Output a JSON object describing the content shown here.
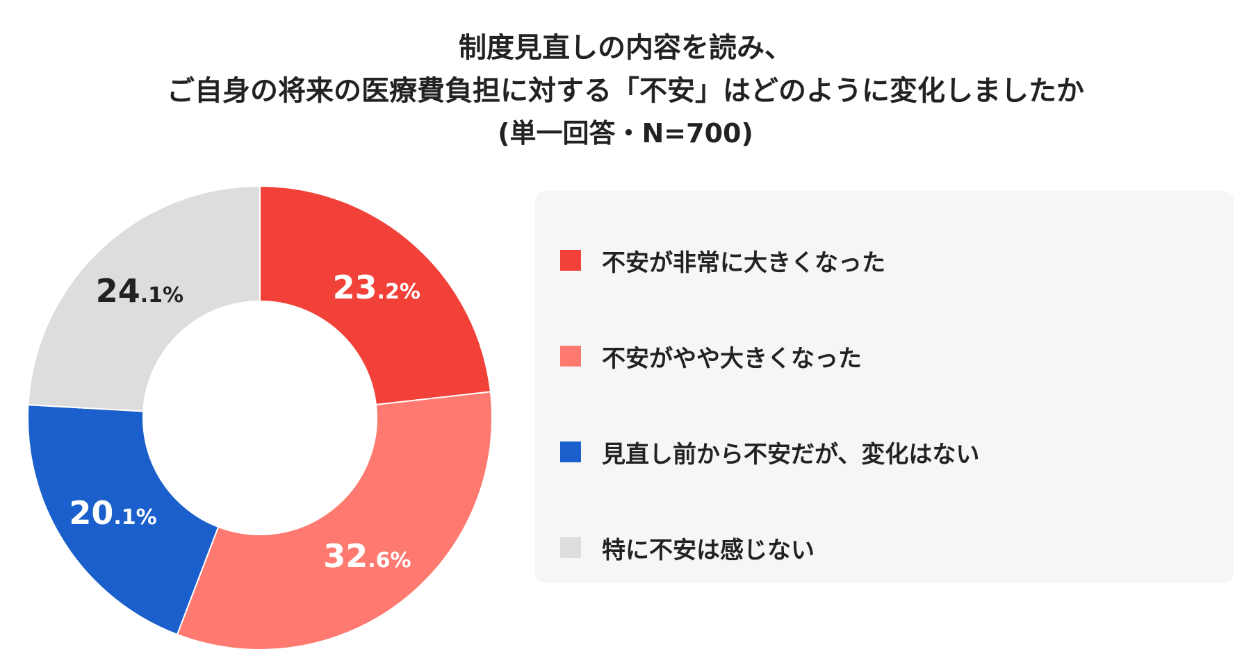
{
  "title": {
    "line1": "制度見直しの内容を読み、",
    "line2": "ご自身の将来の医療費負担に対する「不安」はどのように変化しましたか",
    "line3": "(単一回答・N=700)"
  },
  "chart_data": {
    "type": "pie",
    "donut": true,
    "title": "制度見直しの内容を読み、ご自身の将来の医療費負担に対する「不安」はどのように変化しましたか",
    "subtitle": "(単一回答・N=700)",
    "legend_position": "right",
    "slices": [
      {
        "label": "不安が非常に大きくなった",
        "value": 23.2,
        "int_part": "23",
        "dec_part": ".2%",
        "color": "#f14138",
        "text_color": "#ffffff"
      },
      {
        "label": "不安がやや大きくなった",
        "value": 32.6,
        "int_part": "32",
        "dec_part": ".6%",
        "color": "#fe7a71",
        "text_color": "#ffffff"
      },
      {
        "label": "見直し前から不安だが、変化はない",
        "value": 20.1,
        "int_part": "20",
        "dec_part": ".1%",
        "color": "#1a5fcb",
        "text_color": "#ffffff"
      },
      {
        "label": "特に不安は感じない",
        "value": 24.1,
        "int_part": "24",
        "dec_part": ".1%",
        "color": "#dddddd",
        "text_color": "#222222"
      }
    ]
  }
}
